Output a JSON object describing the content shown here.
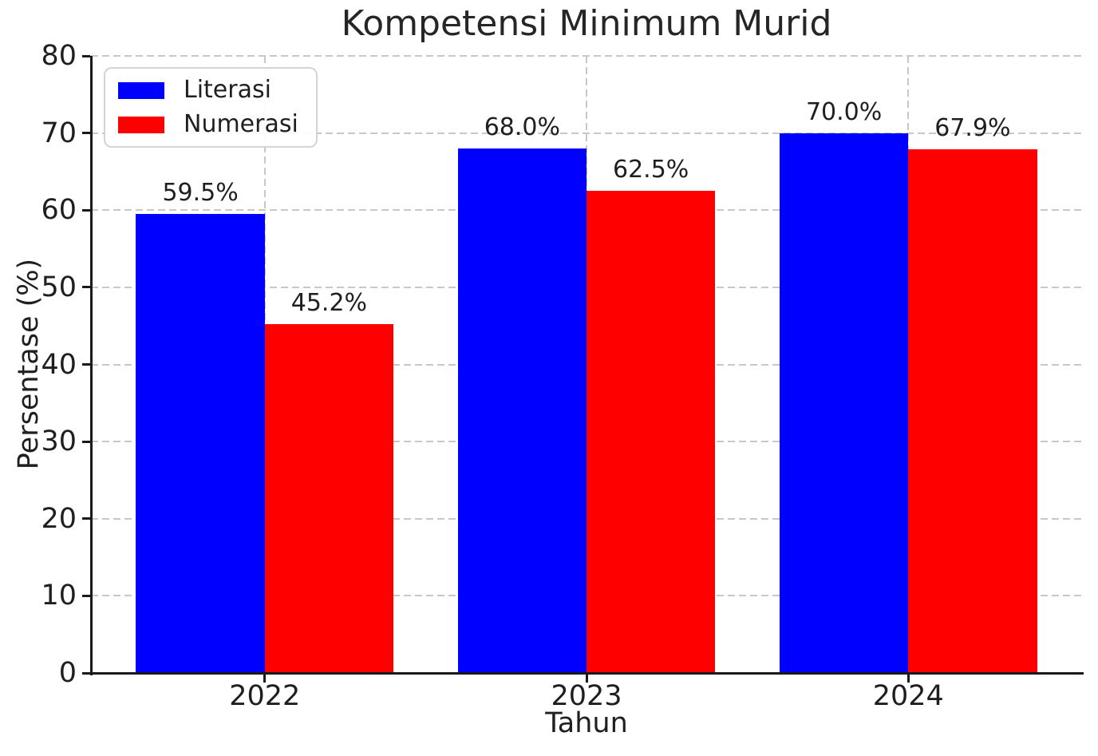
{
  "chart_data": {
    "type": "bar",
    "title": "Kompetensi Minimum Murid",
    "xlabel": "Tahun",
    "ylabel": "Persentase (%)",
    "categories": [
      "2022",
      "2023",
      "2024"
    ],
    "series": [
      {
        "name": "Literasi",
        "color": "#0000ff",
        "values": [
          59.5,
          68.0,
          70.0
        ],
        "value_labels": [
          "59.5%",
          "68.0%",
          "70.0%"
        ]
      },
      {
        "name": "Numerasi",
        "color": "#ff0000",
        "values": [
          45.2,
          62.5,
          67.9
        ],
        "value_labels": [
          "45.2%",
          "62.5%",
          "67.9%"
        ]
      }
    ],
    "ylim": [
      0,
      80
    ],
    "yticks": [
      0,
      10,
      20,
      30,
      40,
      50,
      60,
      70,
      80
    ],
    "xlim": [
      -0.54,
      2.54
    ],
    "bar_width": 0.4,
    "grid": {
      "on": true,
      "style": "dashed",
      "color": "#c8c8c8",
      "axes": "both"
    },
    "legend": {
      "position": "upper-left",
      "entries": [
        "Literasi",
        "Numerasi"
      ]
    },
    "colors": {
      "spine": "#1a1a1a",
      "text": "#1f1f1f",
      "background": "#ffffff"
    }
  }
}
